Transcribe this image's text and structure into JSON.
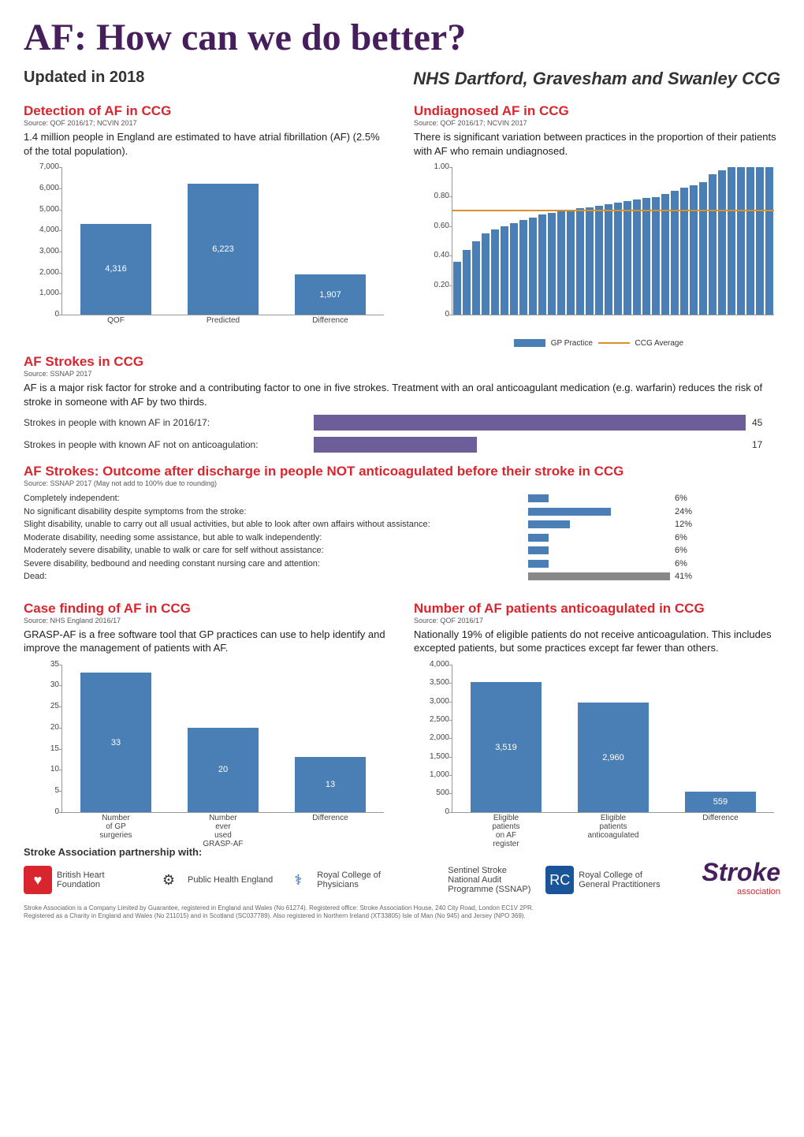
{
  "header": {
    "main_title": "AF: How can we do better?",
    "updated": "Updated in 2018",
    "ccg_name": "NHS Dartford, Gravesham and Swanley CCG"
  },
  "detection": {
    "title": "Detection of AF in CCG",
    "source": "Source: QOF 2016/17; NCVIN 2017",
    "body": "1.4 million people in England are estimated to have atrial fibrillation (AF) (2.5% of the total population).",
    "chart": {
      "type": "bar",
      "categories": [
        "QOF",
        "Predicted",
        "Difference"
      ],
      "values": [
        4316,
        6223,
        1907
      ],
      "value_labels": [
        "4,316",
        "6,223",
        "1,907"
      ],
      "bar_colors": [
        "#4a7fb5",
        "#4a7fb5",
        "#4a7fb5"
      ],
      "ylim": [
        0,
        7000
      ],
      "ytick_step": 1000,
      "ytick_labels": [
        "0",
        "1,000",
        "2,000",
        "3,000",
        "4,000",
        "5,000",
        "6,000",
        "7,000"
      ],
      "bar_width_pct": 22
    }
  },
  "undiagnosed": {
    "title": "Undiagnosed AF in CCG",
    "source": "Source: QOF 2016/17; NCVIN 2017",
    "body": "There is significant variation between practices in the proportion of their patients with AF who remain undiagnosed.",
    "chart": {
      "type": "sorted-bar",
      "ylim": [
        0,
        1.0
      ],
      "ytick_step": 0.2,
      "ytick_labels": [
        "0",
        "0.20",
        "0.40",
        "0.60",
        "0.80",
        "1.00"
      ],
      "bar_color": "#4a7fb5",
      "avg_color": "#d9902e",
      "avg_value": 0.7,
      "n_practices": 34,
      "values": [
        0.36,
        0.44,
        0.5,
        0.55,
        0.58,
        0.6,
        0.62,
        0.64,
        0.66,
        0.68,
        0.69,
        0.7,
        0.71,
        0.72,
        0.73,
        0.74,
        0.75,
        0.76,
        0.77,
        0.78,
        0.79,
        0.8,
        0.82,
        0.84,
        0.86,
        0.88,
        0.9,
        0.95,
        0.98,
        1.0,
        1.0,
        1.0,
        1.0,
        1.0
      ],
      "legend_practice": "GP Practice",
      "legend_avg": "CCG Average"
    }
  },
  "af_strokes": {
    "title": "AF Strokes in CCG",
    "source": "Source: SSNAP 2017",
    "body": "AF is a major risk factor for stroke and a contributing factor to one in five strokes. Treatment with an oral anticoagulant medication (e.g. warfarin) reduces the risk of stroke in someone with AF by two thirds.",
    "rows": [
      {
        "label": "Strokes in people with known AF in 2016/17:",
        "value": 45,
        "max": 45
      },
      {
        "label": "Strokes in people with known AF not on anticoagulation:",
        "value": 17,
        "max": 45
      }
    ],
    "bar_color": "#6d5e99"
  },
  "outcomes": {
    "title": "AF Strokes: Outcome after discharge in people NOT anticoagulated before their stroke in CCG",
    "source": "Source: SSNAP 2017 (May not add to 100% due to rounding)",
    "max_pct": 41,
    "rows": [
      {
        "label": "Completely independent:",
        "pct": 6,
        "color": "#4a7fb5"
      },
      {
        "label": "No significant disability despite symptoms from the stroke:",
        "pct": 24,
        "color": "#4a7fb5"
      },
      {
        "label": "Slight disability, unable to carry out all usual activities, but able to look after own affairs without assistance:",
        "pct": 12,
        "color": "#4a7fb5"
      },
      {
        "label": "Moderate disability, needing some assistance, but able to walk independently:",
        "pct": 6,
        "color": "#4a7fb5"
      },
      {
        "label": "Moderately severe disability, unable to walk or care for self without assistance:",
        "pct": 6,
        "color": "#4a7fb5"
      },
      {
        "label": "Severe disability, bedbound and needing constant nursing care and attention:",
        "pct": 6,
        "color": "#4a7fb5"
      },
      {
        "label": "Dead:",
        "pct": 41,
        "color": "#888888"
      }
    ]
  },
  "case_finding": {
    "title": "Case finding of AF in CCG",
    "source": "Source: NHS England 2016/17",
    "body": "GRASP-AF is a free software tool that GP practices can use to help identify and improve the management of patients with AF.",
    "chart": {
      "type": "bar",
      "categories": [
        "Number\nof GP\nsurgeries",
        "Number\never\nused\nGRASP-AF",
        "Difference"
      ],
      "values": [
        33,
        20,
        13
      ],
      "value_labels": [
        "33",
        "20",
        "13"
      ],
      "bar_colors": [
        "#4a7fb5",
        "#4a7fb5",
        "#4a7fb5"
      ],
      "ylim": [
        0,
        35
      ],
      "ytick_step": 5,
      "ytick_labels": [
        "0",
        "5",
        "10",
        "15",
        "20",
        "25",
        "30",
        "35"
      ],
      "bar_width_pct": 22
    }
  },
  "anticoagulated": {
    "title": "Number of AF patients anticoagulated in CCG",
    "source": "Source: QOF 2016/17",
    "body": "Nationally 19% of eligible patients do not receive anticoagulation. This includes excepted patients, but some practices except far fewer than others.",
    "chart": {
      "type": "bar",
      "categories": [
        "Eligible\npatients\non AF\nregister",
        "Eligible\npatients\nanticoagulated",
        "Difference"
      ],
      "values": [
        3519,
        2960,
        559
      ],
      "value_labels": [
        "3,519",
        "2,960",
        "559"
      ],
      "bar_colors": [
        "#4a7fb5",
        "#4a7fb5",
        "#4a7fb5"
      ],
      "ylim": [
        0,
        4000
      ],
      "ytick_step": 500,
      "ytick_labels": [
        "0",
        "500",
        "1,000",
        "1,500",
        "2,000",
        "2,500",
        "3,000",
        "3,500",
        "4,000"
      ],
      "bar_width_pct": 22
    }
  },
  "partnership": {
    "label": "Stroke Association partnership with:",
    "logos": [
      {
        "name": "British Heart Foundation",
        "icon": "♥",
        "bg": "#d9262e",
        "fg": "#fff"
      },
      {
        "name": "Public Health England",
        "icon": "⚙",
        "bg": "#fff",
        "fg": "#333"
      },
      {
        "name": "Royal College of Physicians",
        "icon": "⚕",
        "bg": "#fff",
        "fg": "#1a5599"
      },
      {
        "name": "Sentinel Stroke National Audit Programme (SSNAP)",
        "icon": "",
        "bg": "#fff",
        "fg": "#777"
      },
      {
        "name": "Royal College of General Practitioners",
        "icon": "RC",
        "bg": "#1a5599",
        "fg": "#fff"
      }
    ],
    "stroke_logo": "Stroke",
    "stroke_logo_sub": "association"
  },
  "footer": {
    "line1": "Stroke Association is a Company Limited by Guarantee, registered in England and Wales (No 61274). Registered office: Stroke Association House, 240 City Road, London EC1V 2PR.",
    "line2": "Registered as a Charity in England and Wales (No 211015) and in Scotland (SC037789). Also registered in Northern Ireland (XT33805) Isle of Man (No 945) and Jersey (NPO 369)."
  }
}
